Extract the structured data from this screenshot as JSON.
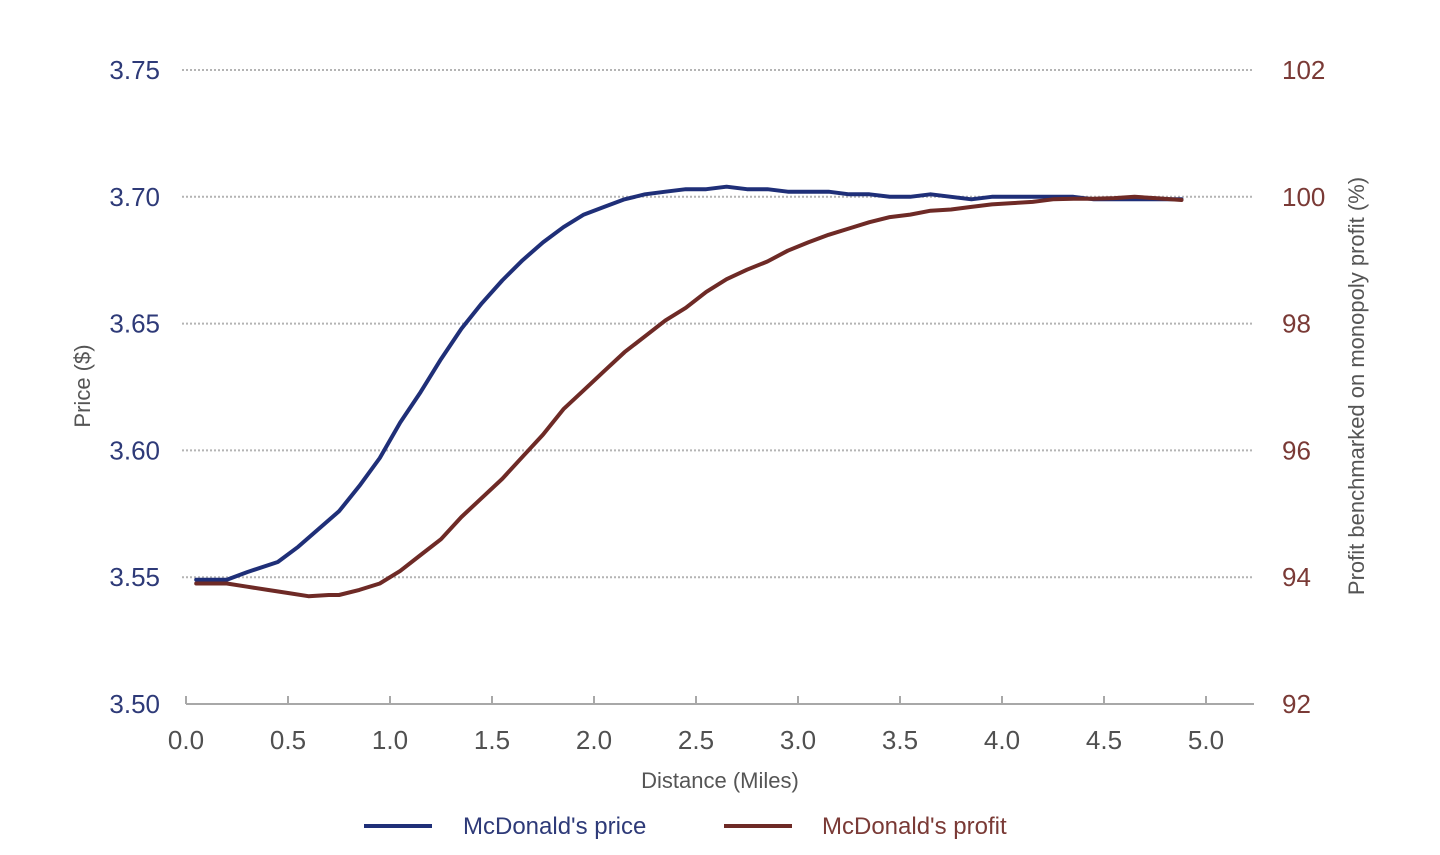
{
  "chart_data": {
    "type": "line",
    "title": "",
    "xlabel": "Distance (Miles)",
    "ylabel": "Price ($)",
    "y2label": "Profit benchmarked on monopoly profit (%)",
    "xlim": [
      0.0,
      5.0
    ],
    "ylim": [
      3.5,
      3.75
    ],
    "y2lim": [
      92,
      102
    ],
    "x_ticks": [
      "0.0",
      "0.5",
      "1.0",
      "1.5",
      "2.0",
      "2.5",
      "3.0",
      "3.5",
      "4.0",
      "4.5",
      "5.0"
    ],
    "y_ticks": [
      "3.75",
      "3.70",
      "3.65",
      "3.60",
      "3.55",
      "3.50"
    ],
    "y2_ticks": [
      "102",
      "100",
      "98",
      "96",
      "94",
      "92"
    ],
    "grid": "horizontal dotted",
    "legend_position": "bottom",
    "series": [
      {
        "name": "McDonald's price",
        "axis": "left",
        "color": "#1f2f78",
        "x": [
          0.05,
          0.2,
          0.3,
          0.45,
          0.55,
          0.65,
          0.75,
          0.85,
          0.95,
          1.05,
          1.15,
          1.25,
          1.35,
          1.45,
          1.55,
          1.65,
          1.75,
          1.85,
          1.95,
          2.05,
          2.15,
          2.25,
          2.35,
          2.45,
          2.55,
          2.65,
          2.75,
          2.85,
          2.95,
          3.05,
          3.15,
          3.25,
          3.35,
          3.45,
          3.55,
          3.65,
          3.75,
          3.85,
          3.95,
          4.05,
          4.15,
          4.25,
          4.35,
          4.45,
          4.55,
          4.65,
          4.75,
          4.88
        ],
        "values": [
          3.549,
          3.549,
          3.552,
          3.556,
          3.562,
          3.569,
          3.576,
          3.586,
          3.597,
          3.611,
          3.623,
          3.636,
          3.648,
          3.658,
          3.667,
          3.675,
          3.682,
          3.688,
          3.693,
          3.696,
          3.699,
          3.701,
          3.702,
          3.703,
          3.703,
          3.704,
          3.703,
          3.703,
          3.702,
          3.702,
          3.702,
          3.701,
          3.701,
          3.7,
          3.7,
          3.701,
          3.7,
          3.699,
          3.7,
          3.7,
          3.7,
          3.7,
          3.7,
          3.699,
          3.699,
          3.699,
          3.699,
          3.699
        ]
      },
      {
        "name": "McDonald's profit",
        "axis": "right",
        "color": "#6e2a26",
        "x": [
          0.05,
          0.2,
          0.3,
          0.4,
          0.5,
          0.6,
          0.7,
          0.75,
          0.85,
          0.95,
          1.05,
          1.15,
          1.25,
          1.35,
          1.45,
          1.55,
          1.65,
          1.75,
          1.85,
          1.95,
          2.05,
          2.15,
          2.25,
          2.35,
          2.45,
          2.55,
          2.65,
          2.75,
          2.85,
          2.95,
          3.05,
          3.15,
          3.25,
          3.35,
          3.45,
          3.55,
          3.65,
          3.75,
          3.85,
          3.95,
          4.05,
          4.15,
          4.25,
          4.35,
          4.45,
          4.55,
          4.65,
          4.75,
          4.88
        ],
        "values": [
          93.9,
          93.9,
          93.85,
          93.8,
          93.75,
          93.7,
          93.72,
          93.72,
          93.8,
          93.9,
          94.1,
          94.35,
          94.6,
          94.95,
          95.25,
          95.55,
          95.9,
          96.25,
          96.65,
          96.95,
          97.25,
          97.55,
          97.8,
          98.05,
          98.25,
          98.5,
          98.7,
          98.85,
          98.98,
          99.15,
          99.28,
          99.4,
          99.5,
          99.6,
          99.68,
          99.72,
          99.78,
          99.8,
          99.84,
          99.88,
          99.9,
          99.92,
          99.96,
          99.97,
          99.97,
          99.98,
          100.0,
          99.98,
          99.95
        ]
      }
    ]
  },
  "axes": {
    "xlabel": "Distance (Miles)",
    "ylabel": "Price ($)",
    "y2label": "Profit benchmarked on monopoly profit (%)"
  },
  "legend": {
    "items": [
      {
        "label": "McDonald's price",
        "color": "#1f2f78"
      },
      {
        "label": "McDonald's profit",
        "color": "#6e2a26"
      }
    ]
  }
}
